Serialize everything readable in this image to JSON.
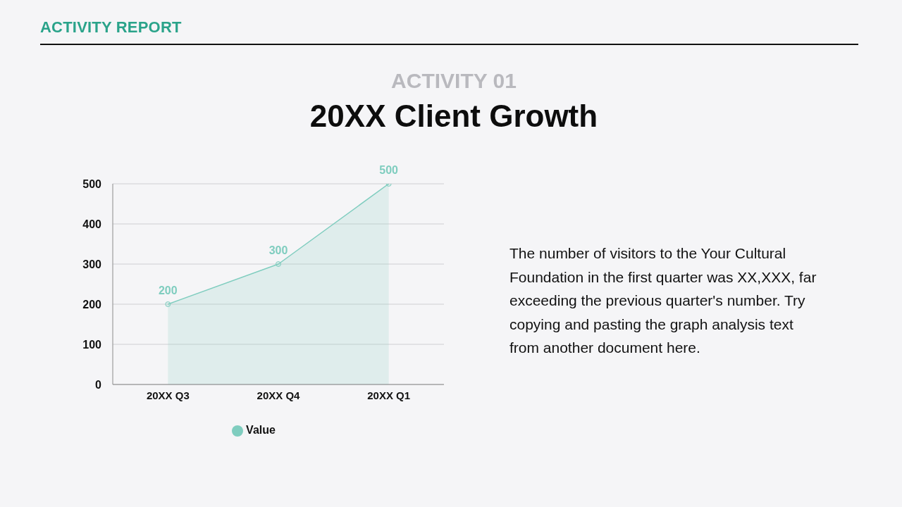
{
  "chart_data": {
    "type": "area",
    "title": "20XX Client Growth",
    "subtitle": "ACTIVITY 01",
    "categories": [
      "20XX Q3",
      "20XX Q4",
      "20XX Q1"
    ],
    "series": [
      {
        "name": "Value",
        "color": "#7fcdbf",
        "values": [
          200,
          300,
          500
        ]
      }
    ],
    "ylim": [
      0,
      500
    ],
    "yticks": [
      0,
      100,
      200,
      300,
      400,
      500
    ],
    "grid": "y",
    "legend": "bottom",
    "data_labels": true,
    "marker": "circle",
    "annotations": [
      "ACTIVITY REPORT",
      "The number of visitors to the Your Cultural Foundation in the first quarter was XX,XXX, far exceeding the previous quarter's number. Try copying and pasting the graph analysis text from another document here."
    ]
  }
}
